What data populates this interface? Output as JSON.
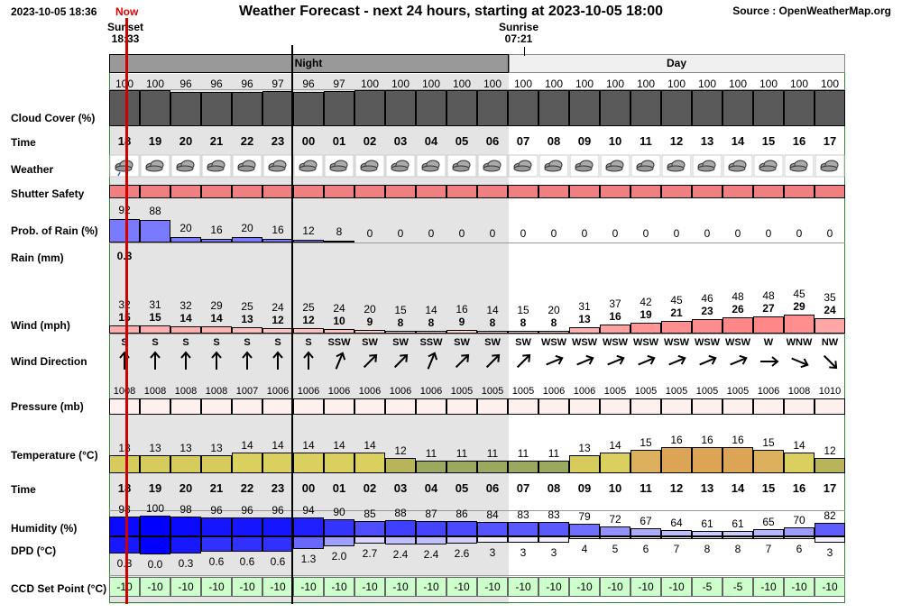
{
  "header": {
    "date_time": "2023-10-05 18:36",
    "now_label": "Now",
    "title": "Weather Forecast - next 24 hours, starting at 2023-10-05 18:00",
    "source": "Source : OpenWeatherMap.org",
    "sunset_label": "Sunset",
    "sunset_time": "18:33",
    "sunrise_label": "Sunrise",
    "sunrise_time": "07:21"
  },
  "period_labels": {
    "night": "Night",
    "day": "Day"
  },
  "row_labels": {
    "cloud_cover": "Cloud Cover (%)",
    "time": "Time",
    "weather": "Weather",
    "shutter_safety": "Shutter Safety",
    "prob_rain": "Prob. of Rain (%)",
    "rain": "Rain (mm)",
    "wind": "Wind (mph)",
    "wind_direction": "Wind Direction",
    "pressure": "Pressure (mb)",
    "temperature": "Temperature (°C)",
    "time2": "Time",
    "humidity": "Humidity (%)",
    "dpd": "DPD (°C)",
    "ccd": "CCD Set Point (°C)"
  },
  "colors": {
    "night_bg": "#e4e4e4",
    "night_header": "#999999",
    "day_header": "#f0f0f0",
    "cloud": "#5a5a5a",
    "shutter": "#f08080",
    "rain_prob": "#7a7aff",
    "ccd_bg": "#ccffcc",
    "now_line": "#d00000"
  },
  "hours": [
    "18",
    "19",
    "20",
    "21",
    "22",
    "23",
    "00",
    "01",
    "02",
    "03",
    "04",
    "05",
    "06",
    "07",
    "08",
    "09",
    "10",
    "11",
    "12",
    "13",
    "14",
    "15",
    "16",
    "17"
  ],
  "cloud_cover": [
    100,
    100,
    96,
    96,
    96,
    97,
    96,
    97,
    100,
    100,
    100,
    100,
    100,
    100,
    100,
    100,
    100,
    100,
    100,
    100,
    100,
    100,
    100,
    100
  ],
  "weather_icons": [
    "rain-cloud-icon",
    "cloud-icon",
    "cloud-icon",
    "cloud-icon",
    "cloud-icon",
    "cloud-icon",
    "cloud-icon",
    "cloud-icon",
    "cloud-icon",
    "cloud-icon",
    "cloud-icon",
    "cloud-icon",
    "cloud-icon",
    "cloud-icon",
    "cloud-icon",
    "cloud-icon",
    "cloud-icon",
    "cloud-icon",
    "cloud-icon",
    "cloud-icon",
    "cloud-icon",
    "cloud-icon",
    "cloud-icon",
    "cloud-icon"
  ],
  "prob_rain": [
    92,
    88,
    20,
    16,
    20,
    16,
    12,
    8,
    0,
    0,
    0,
    0,
    0,
    0,
    0,
    0,
    0,
    0,
    0,
    0,
    0,
    0,
    0,
    0
  ],
  "rain_mm": [
    "0.3",
    "",
    "",
    "",
    "",
    "",
    "",
    "",
    "",
    "",
    "",
    "",
    "",
    "",
    "",
    "",
    "",
    "",
    "",
    "",
    "",
    "",
    "",
    ""
  ],
  "wind_gust": [
    32,
    31,
    32,
    29,
    25,
    24,
    25,
    24,
    20,
    15,
    14,
    16,
    14,
    15,
    20,
    31,
    37,
    42,
    45,
    46,
    48,
    48,
    45,
    35
  ],
  "wind_speed": [
    15,
    15,
    14,
    14,
    13,
    12,
    12,
    10,
    9,
    8,
    8,
    9,
    8,
    8,
    8,
    13,
    16,
    19,
    21,
    23,
    26,
    27,
    29,
    24
  ],
  "wind_dir": [
    "S",
    "S",
    "S",
    "S",
    "S",
    "S",
    "S",
    "SSW",
    "SW",
    "SW",
    "SSW",
    "SW",
    "SW",
    "SW",
    "WSW",
    "WSW",
    "WSW",
    "WSW",
    "WSW",
    "WSW",
    "WSW",
    "W",
    "WNW",
    "NW"
  ],
  "pressure": [
    1008,
    1008,
    1008,
    1008,
    1007,
    1006,
    1006,
    1006,
    1006,
    1006,
    1006,
    1005,
    1005,
    1005,
    1006,
    1006,
    1005,
    1005,
    1005,
    1005,
    1005,
    1006,
    1008,
    1010
  ],
  "temperature": [
    13,
    13,
    13,
    13,
    14,
    14,
    14,
    14,
    14,
    12,
    11,
    11,
    11,
    11,
    11,
    13,
    14,
    15,
    16,
    16,
    16,
    15,
    14,
    12
  ],
  "humidity": [
    98,
    100,
    98,
    96,
    96,
    96,
    94,
    90,
    85,
    88,
    87,
    86,
    84,
    83,
    83,
    79,
    72,
    67,
    64,
    61,
    61,
    65,
    70,
    82
  ],
  "dpd": [
    "0.3",
    "0.0",
    "0.3",
    "0.6",
    "0.6",
    "0.6",
    "1.3",
    "2.0",
    "2.7",
    "2.4",
    "2.4",
    "2.6",
    "3",
    "3",
    "3",
    "4",
    "5",
    "6",
    "7",
    "8",
    "8",
    "7",
    "6",
    "3"
  ],
  "ccd_set_point": [
    -10,
    -10,
    -10,
    -10,
    -10,
    -10,
    -10,
    -10,
    -10,
    -10,
    -10,
    -10,
    -10,
    -10,
    -10,
    -10,
    -10,
    -10,
    -10,
    -5,
    -5,
    -10,
    -10,
    -10
  ]
}
